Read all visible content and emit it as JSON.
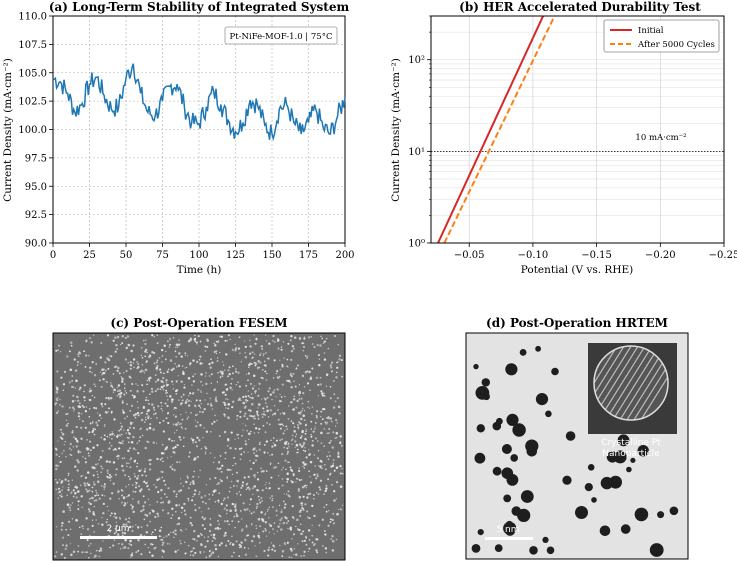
{
  "chart_data": [
    {
      "id": "a",
      "type": "line",
      "title": "(a) Long-Term Stability of Integrated System",
      "xlabel": "Time (h)",
      "ylabel": "Current Density (mA·cm⁻²)",
      "xlim": [
        0,
        200
      ],
      "ylim": [
        90.0,
        110.0
      ],
      "xticks": [
        "0",
        "25",
        "50",
        "75",
        "100",
        "125",
        "150",
        "175",
        "200"
      ],
      "yticks": [
        "90.0",
        "92.5",
        "95.0",
        "97.5",
        "100.0",
        "102.5",
        "105.0",
        "107.5",
        "110.0"
      ],
      "grid": true,
      "annotation": "Pt-NiFe-MOF-1.0 | 75°C",
      "series_color": "#1f77b4",
      "x": [
        0,
        5,
        10,
        15,
        20,
        25,
        30,
        35,
        40,
        45,
        50,
        55,
        60,
        65,
        70,
        75,
        80,
        85,
        90,
        95,
        100,
        105,
        110,
        115,
        120,
        125,
        130,
        135,
        140,
        145,
        150,
        155,
        160,
        165,
        170,
        175,
        180,
        185,
        190,
        195,
        200
      ],
      "y": [
        104.5,
        104.2,
        103.2,
        101.5,
        102.3,
        104.0,
        104.6,
        103.0,
        101.8,
        102.0,
        104.5,
        105.8,
        103.2,
        101.5,
        101.2,
        102.5,
        103.8,
        104.0,
        102.0,
        100.6,
        100.5,
        102.0,
        103.4,
        102.2,
        100.8,
        99.8,
        100.6,
        102.6,
        102.2,
        100.4,
        99.6,
        101.8,
        102.2,
        100.6,
        99.6,
        100.6,
        101.8,
        100.2,
        99.6,
        101.2,
        102.8
      ]
    },
    {
      "id": "b",
      "type": "line",
      "title": "(b) HER Accelerated Durability Test",
      "xlabel": "Potential (V vs. RHE)",
      "ylabel": "Current Density (mA·cm⁻²)",
      "xlim": [
        -0.02,
        -0.25
      ],
      "ylim": [
        1,
        300
      ],
      "yscale": "log",
      "xticks": [
        "−0.05",
        "−0.10",
        "−0.15",
        "−0.20",
        "−0.25"
      ],
      "yticks": [
        "10⁰",
        "10¹",
        "10²"
      ],
      "grid": true,
      "reference_line": {
        "y": 10,
        "label": "10 mA·cm⁻²"
      },
      "legend_position": "top-right",
      "series": [
        {
          "name": "Initial",
          "color": "#d62728",
          "style": "solid",
          "x": [
            -0.0255,
            -0.108
          ],
          "y": [
            1,
            300
          ]
        },
        {
          "name": "After 5000 Cycles",
          "color": "#ff7f0e",
          "style": "dashed",
          "x": [
            -0.0305,
            -0.117
          ],
          "y": [
            1,
            300
          ]
        }
      ]
    }
  ],
  "images": {
    "fesem": {
      "title": "(c) Post-Operation FESEM",
      "scale_label": "2 μm"
    },
    "hrtem": {
      "title": "(d) Post-Operation HRTEM",
      "scale_label": "5 nm",
      "inset_label_1": "Crystalline Pt",
      "inset_label_2": "Nanoparticle"
    }
  }
}
